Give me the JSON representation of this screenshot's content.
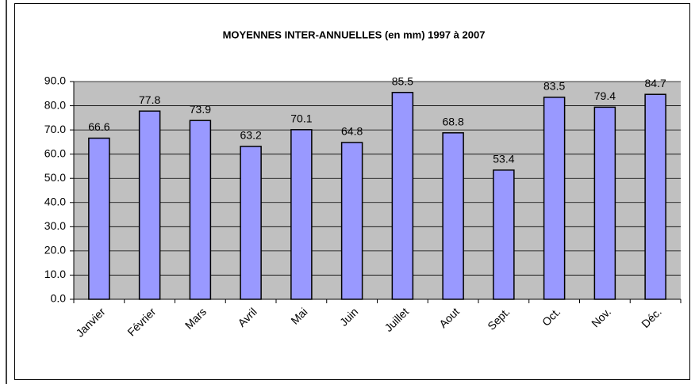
{
  "chart_data": {
    "type": "bar",
    "title": "MOYENNES INTER-ANNUELLES (en mm) 1997 à 2007",
    "categories": [
      "Janvier",
      "Février",
      "Mars",
      "Avril",
      "Mai",
      "Juin",
      "Juillet",
      "Aout",
      "Sept.",
      "Oct.",
      "Nov.",
      "Déc."
    ],
    "values": [
      66.6,
      77.8,
      73.9,
      63.2,
      70.1,
      64.8,
      85.5,
      68.8,
      53.4,
      83.5,
      79.4,
      84.7
    ],
    "color": "#9999ff",
    "ylim": [
      0,
      90
    ],
    "yticks": [
      {
        "value": 0,
        "label": "0.0"
      },
      {
        "value": 10,
        "label": "10.0"
      },
      {
        "value": 20,
        "label": "20.0"
      },
      {
        "value": 30,
        "label": "30.0"
      },
      {
        "value": 40,
        "label": "40.0"
      },
      {
        "value": 50,
        "label": "50.0"
      },
      {
        "value": 60,
        "label": "60.0"
      },
      {
        "value": 70,
        "label": "70.0"
      },
      {
        "value": 80,
        "label": "80.0"
      },
      {
        "value": 90,
        "label": "90.0"
      }
    ],
    "grid": true
  }
}
